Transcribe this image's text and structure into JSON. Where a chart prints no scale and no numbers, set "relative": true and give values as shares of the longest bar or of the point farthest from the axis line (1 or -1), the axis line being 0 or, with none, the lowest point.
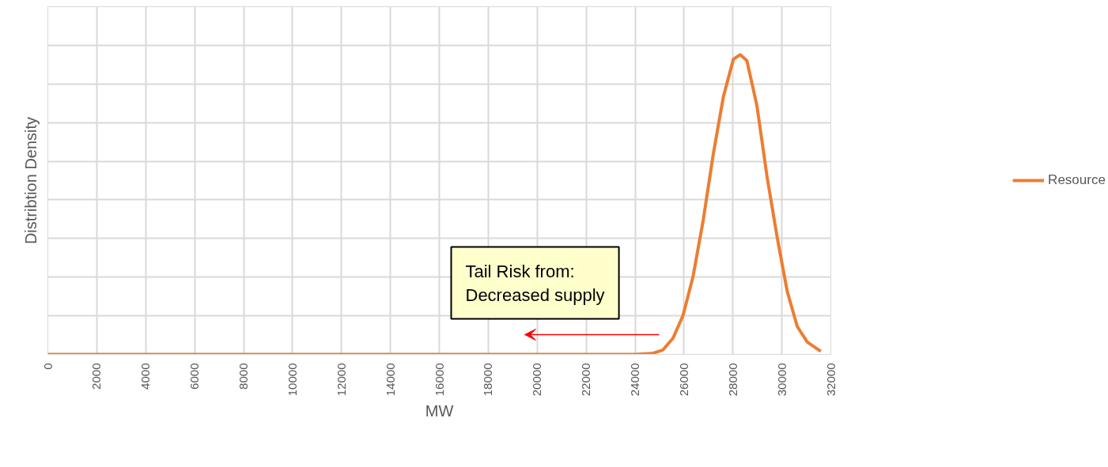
{
  "chart_data": {
    "type": "line",
    "xlabel": "MW",
    "ylabel": "Distribtion Density",
    "relative": true,
    "xlim": [
      0,
      32000
    ],
    "xticks": [
      0,
      2000,
      4000,
      6000,
      8000,
      10000,
      12000,
      14000,
      16000,
      18000,
      20000,
      22000,
      24000,
      26000,
      28000,
      30000,
      32000
    ],
    "grid": true,
    "legend": "right",
    "marker": "none",
    "line_style": "solid",
    "series": [
      {
        "name": "Resource",
        "color": "#ed7d31",
        "x": [
          0,
          4000,
          8000,
          12000,
          16000,
          20000,
          24000,
          24700,
          25140,
          25550,
          25960,
          26370,
          26790,
          27200,
          27610,
          28020,
          28300,
          28570,
          28980,
          29400,
          29810,
          30220,
          30630,
          31040,
          31590
        ],
        "values": [
          0,
          0,
          0,
          0,
          0,
          0,
          0,
          0.003,
          0.015,
          0.054,
          0.13,
          0.26,
          0.45,
          0.67,
          0.86,
          0.985,
          1.0,
          0.98,
          0.83,
          0.59,
          0.39,
          0.21,
          0.093,
          0.041,
          0.01
        ]
      }
    ],
    "annotations": [
      "Tail Risk from:\nDecreased supply"
    ]
  }
}
